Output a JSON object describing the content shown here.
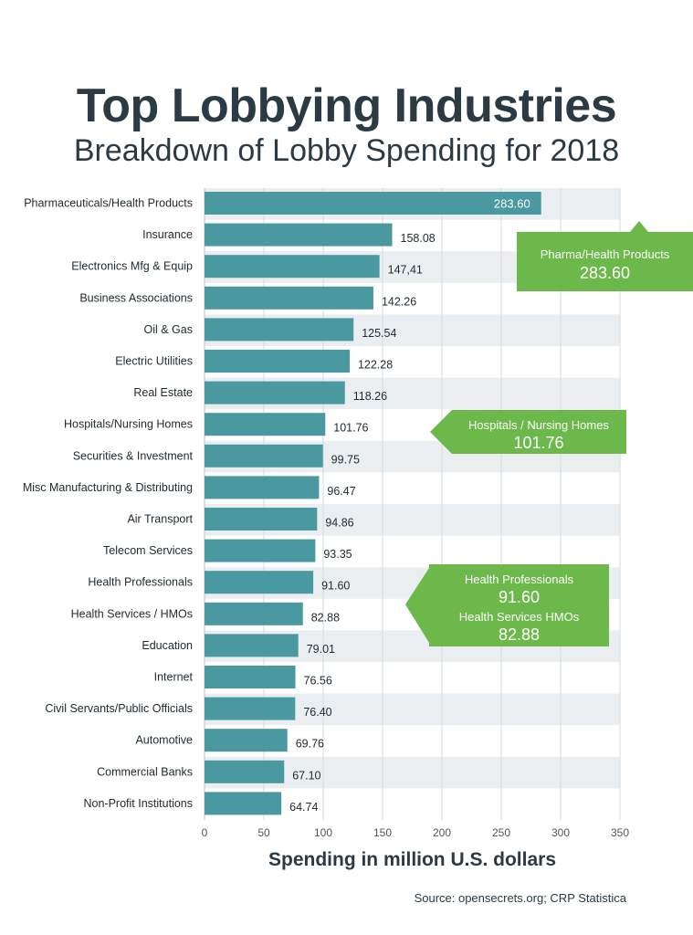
{
  "header": {
    "title": "Top Lobbying Industries",
    "subtitle": "Breakdown of Lobby Spending for 2018"
  },
  "footer": {
    "xlabel": "Spending in million U.S. dollars",
    "source": "Source: opensecrets.org; CRP Statistica"
  },
  "colors": {
    "bar": "#4a98a0",
    "band": "#eaeef0",
    "grid": "#d4d9dc",
    "callout": "#6cb84a"
  },
  "chart_data": {
    "type": "bar",
    "orientation": "horizontal",
    "title": "Top Lobbying Industries",
    "subtitle": "Breakdown of Lobby Spending for 2018",
    "xlabel": "Spending in million U.S. dollars",
    "ylabel": "",
    "xlim": [
      0,
      350
    ],
    "xticks": [
      "0",
      "50",
      "100",
      "150",
      "200",
      "250",
      "300",
      "350"
    ],
    "grid": true,
    "categories": [
      "Pharmaceuticals/Health Products",
      "Insurance",
      "Electronics Mfg & Equip",
      "Business Associations",
      "Oil & Gas",
      "Electric Utilities",
      "Real Estate",
      "Hospitals/Nursing Homes",
      "Securities & Investment",
      "Misc Manufacturing & Distributing",
      "Air Transport",
      "Telecom Services",
      "Health Professionals",
      "Health Services / HMOs",
      "Education",
      "Internet",
      "Civil Servants/Public Officials",
      "Automotive",
      "Commercial Banks",
      "Non-Profit Institutions"
    ],
    "values": [
      283.6,
      158.08,
      147.41,
      142.26,
      125.54,
      122.28,
      118.26,
      101.76,
      99.75,
      96.47,
      94.86,
      93.35,
      91.6,
      82.88,
      79.01,
      76.56,
      76.4,
      69.76,
      67.1,
      64.74
    ],
    "value_labels": [
      "283.60",
      "158.08",
      "147,41",
      "142.26",
      "125.54",
      "122.28",
      "118.26",
      "101.76",
      "99.75",
      "96.47",
      "94.86",
      "93.35",
      "91.60",
      "82.88",
      "79.01",
      "76.56",
      "76.40",
      "69.76",
      "67.10",
      "64.74"
    ],
    "annotations": [
      {
        "lines": [
          {
            "text": "Pharma/Health Products",
            "kind": "name"
          },
          {
            "text": "283.60",
            "kind": "value"
          }
        ]
      },
      {
        "lines": [
          {
            "text": "Hospitals / Nursing Homes",
            "kind": "name"
          },
          {
            "text": "101.76",
            "kind": "value"
          }
        ]
      },
      {
        "lines": [
          {
            "text": "Health Professionals",
            "kind": "name"
          },
          {
            "text": "91.60",
            "kind": "value"
          },
          {
            "text": "Health Services HMOs",
            "kind": "name"
          },
          {
            "text": "82.88",
            "kind": "value"
          }
        ]
      }
    ]
  }
}
